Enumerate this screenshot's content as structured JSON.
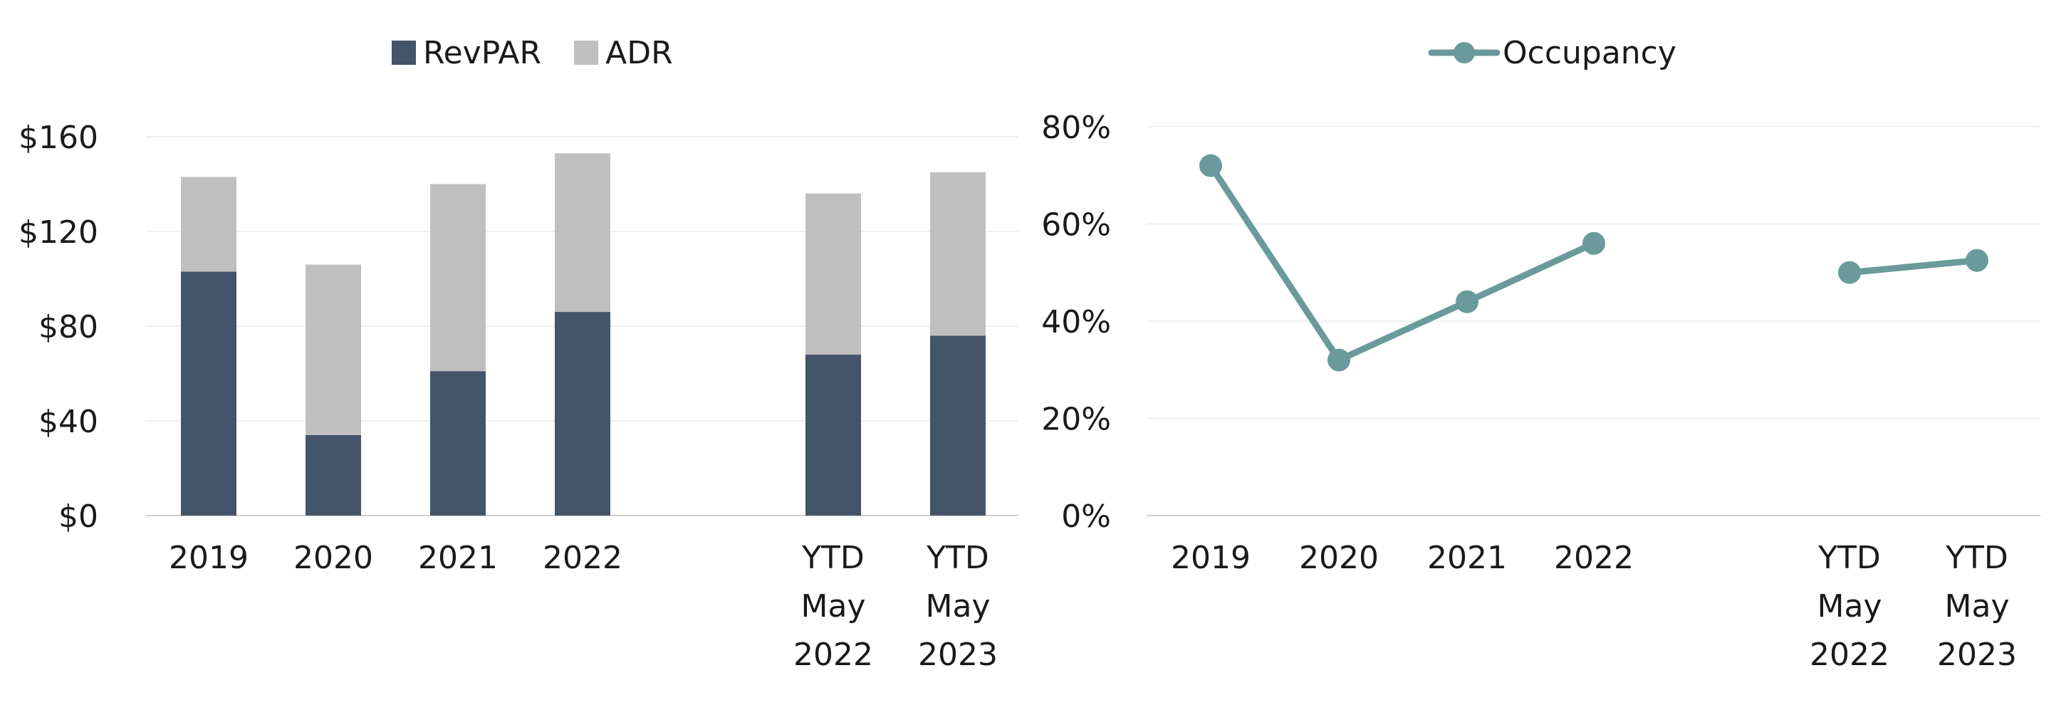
{
  "chart_data": [
    {
      "type": "bar",
      "stacked": true,
      "categories": [
        [
          "2019"
        ],
        [
          "2020"
        ],
        [
          "2021"
        ],
        [
          "2022"
        ],
        [],
        [
          "YTD",
          "May",
          "2022"
        ],
        [
          "YTD",
          "May",
          "2023"
        ]
      ],
      "series": [
        {
          "name": "RevPAR",
          "color": "#44546a",
          "values": [
            103,
            34,
            61,
            86,
            null,
            68,
            76
          ]
        },
        {
          "name": "ADR",
          "color": "#bfbfbf",
          "values": [
            40,
            72,
            79,
            67,
            null,
            68,
            69
          ]
        }
      ],
      "yticks": [
        "$0",
        "$40",
        "$80",
        "$120",
        "$160"
      ],
      "ylim": [
        0,
        160
      ],
      "grid": true,
      "legend": "top-center"
    },
    {
      "type": "line",
      "categories": [
        [
          "2019"
        ],
        [
          "2020"
        ],
        [
          "2021"
        ],
        [
          "2022"
        ],
        [],
        [
          "YTD",
          "May",
          "2022"
        ],
        [
          "YTD",
          "May",
          "2023"
        ]
      ],
      "series": [
        {
          "name": "Occupancy",
          "color": "#6a9a9b",
          "values": [
            72,
            32,
            44,
            56,
            null,
            50,
            52.5
          ]
        }
      ],
      "yticks": [
        "0%",
        "20%",
        "40%",
        "60%",
        "80%"
      ],
      "ylim": [
        0,
        80
      ],
      "grid": true,
      "legend": "top-center"
    }
  ]
}
